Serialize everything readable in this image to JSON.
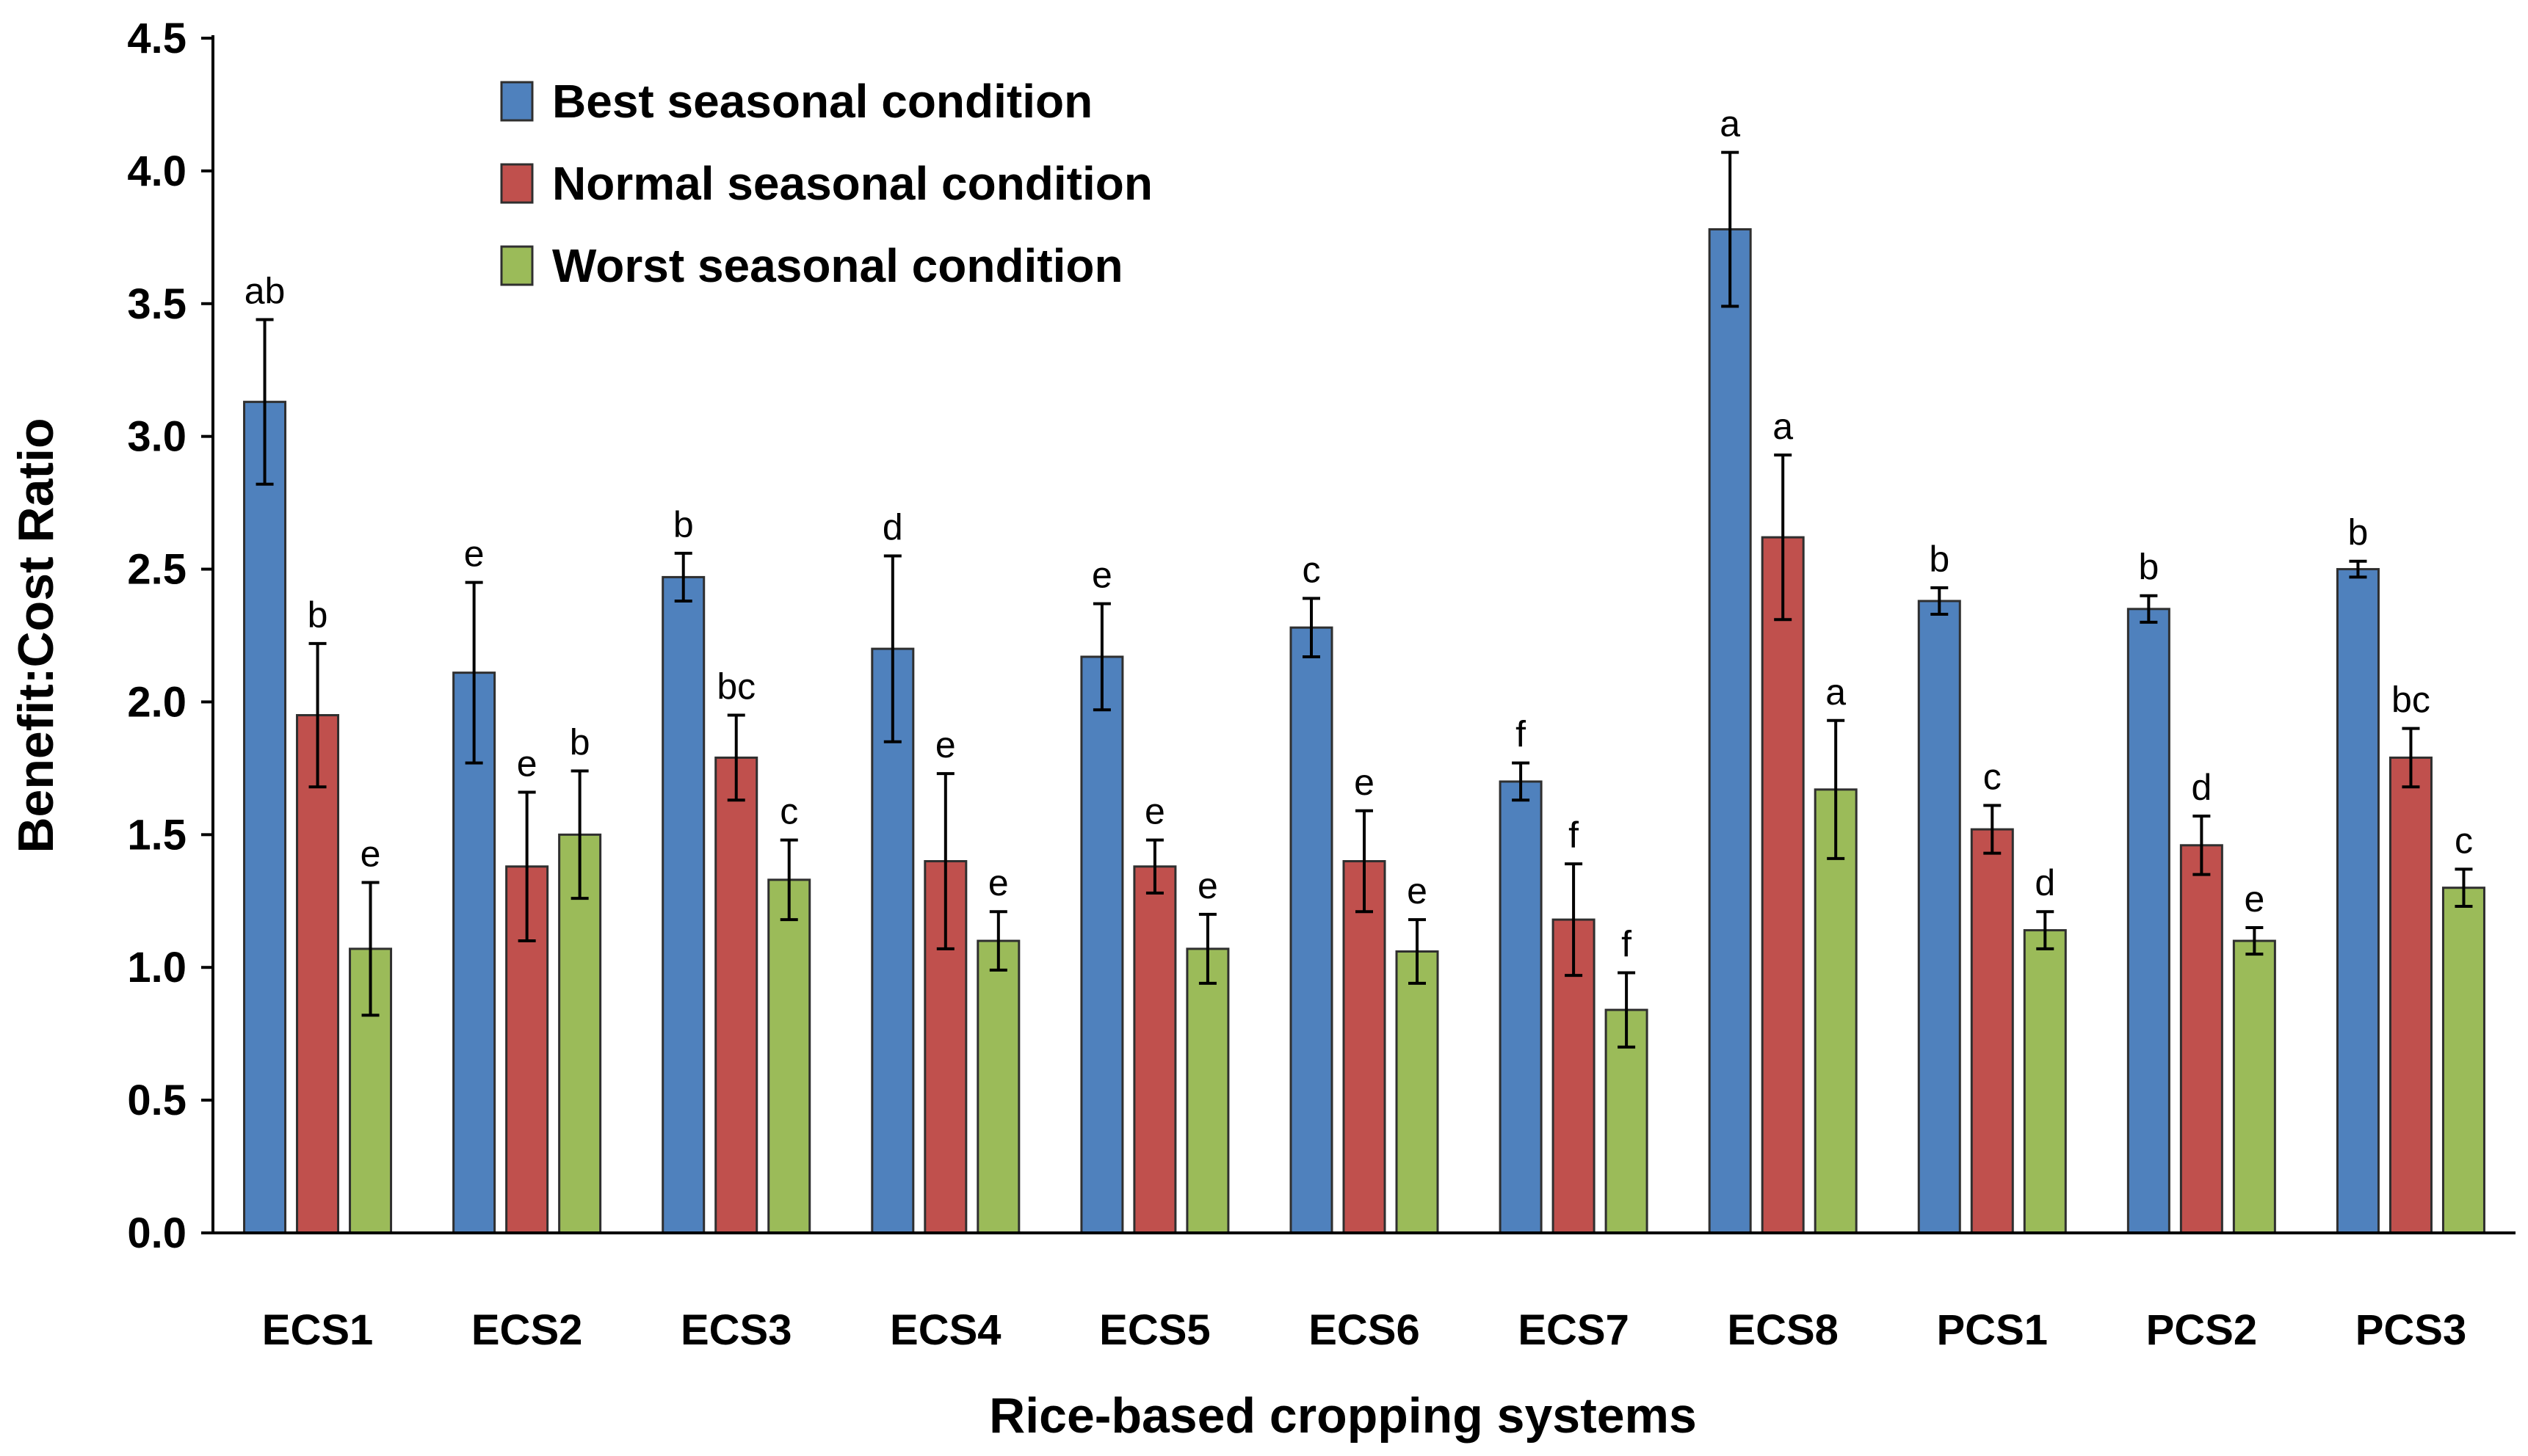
{
  "chart_data": {
    "type": "bar",
    "title": "",
    "xlabel": "Rice-based cropping systems",
    "ylabel": "Benefit:Cost Ratio",
    "ylim": [
      0,
      4.5
    ],
    "yticks": [
      "0.0",
      "0.5",
      "1.0",
      "1.5",
      "2.0",
      "2.5",
      "3.0",
      "3.5",
      "4.0",
      "4.5"
    ],
    "grid": false,
    "legend_position": "top-left",
    "categories": [
      "ECS1",
      "ECS2",
      "ECS3",
      "ECS4",
      "ECS5",
      "ECS6",
      "ECS7",
      "ECS8",
      "PCS1",
      "PCS2",
      "PCS3"
    ],
    "series": [
      {
        "name": "Best seasonal condition",
        "color": "#4F81BD",
        "values": [
          3.13,
          2.11,
          2.47,
          2.2,
          2.17,
          2.28,
          1.7,
          3.78,
          2.38,
          2.35,
          2.5
        ],
        "errors": [
          0.31,
          0.34,
          0.09,
          0.35,
          0.2,
          0.11,
          0.07,
          0.29,
          0.05,
          0.05,
          0.03
        ],
        "labels": [
          "ab",
          "e",
          "b",
          "d",
          "e",
          "c",
          "f",
          "a",
          "b",
          "b",
          "b"
        ]
      },
      {
        "name": "Normal seasonal condition",
        "color": "#C0504D",
        "values": [
          1.95,
          1.38,
          1.79,
          1.4,
          1.38,
          1.4,
          1.18,
          2.62,
          1.52,
          1.46,
          1.79
        ],
        "errors": [
          0.27,
          0.28,
          0.16,
          0.33,
          0.1,
          0.19,
          0.21,
          0.31,
          0.09,
          0.11,
          0.11
        ],
        "labels": [
          "b",
          "e",
          "bc",
          "e",
          "e",
          "e",
          "f",
          "a",
          "c",
          "d",
          "bc"
        ]
      },
      {
        "name": "Worst seasonal condition",
        "color": "#9BBB59",
        "values": [
          1.07,
          1.5,
          1.33,
          1.1,
          1.07,
          1.06,
          0.84,
          1.67,
          1.14,
          1.1,
          1.3
        ],
        "errors": [
          0.25,
          0.24,
          0.15,
          0.11,
          0.13,
          0.12,
          0.14,
          0.26,
          0.07,
          0.05,
          0.07
        ],
        "labels": [
          "e",
          "b",
          "c",
          "e",
          "e",
          "e",
          "f",
          "a",
          "d",
          "e",
          "c"
        ]
      }
    ]
  }
}
